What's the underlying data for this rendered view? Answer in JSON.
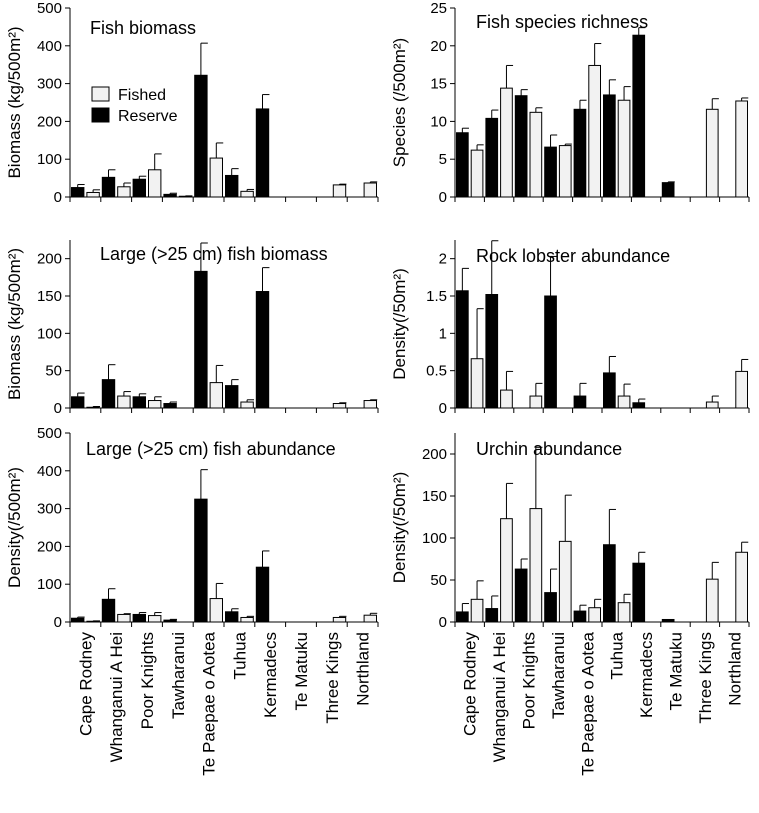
{
  "legend": {
    "fished": "Fished",
    "reserve": "Reserve",
    "fished_color": "#f2f2f2",
    "reserve_color": "#000000"
  },
  "sites": [
    "Cape Rodney",
    "Whanganui A Hei",
    "Poor Knights",
    "Tawharanui",
    "Te Paepae o Aotea",
    "Tuhua",
    "Kermadecs",
    "Te Matuku",
    "Three Kings",
    "Northland"
  ],
  "chart_data": [
    {
      "id": "fish-biomass",
      "type": "bar",
      "title": "Fish biomass",
      "ylabel": "Biomass (kg/500m²)",
      "ylim": [
        0,
        500
      ],
      "yticks": [
        0,
        100,
        200,
        300,
        400,
        500
      ],
      "categories": [
        "Cape Rodney",
        "Whanganui A Hei",
        "Poor Knights",
        "Tawharanui",
        "Te Paepae o Aotea",
        "Tuhua",
        "Kermadecs",
        "Te Matuku",
        "Three Kings",
        "Northland"
      ],
      "series": [
        {
          "name": "Reserve",
          "values": [
            25,
            52,
            47,
            7,
            322,
            57,
            233,
            null,
            null,
            null
          ],
          "errors": [
            8,
            20,
            8,
            3,
            85,
            18,
            38,
            null,
            null,
            null
          ]
        },
        {
          "name": "Fished",
          "values": [
            12,
            27,
            72,
            2,
            103,
            15,
            null,
            null,
            32,
            37
          ],
          "errors": [
            7,
            10,
            42,
            1,
            40,
            5,
            null,
            null,
            2,
            3
          ]
        }
      ]
    },
    {
      "id": "fish-species-richness",
      "type": "bar",
      "title": "Fish species richness",
      "ylabel": "Species (/500m²)",
      "ylim": [
        0,
        25
      ],
      "yticks": [
        0,
        5,
        10,
        15,
        20,
        25
      ],
      "categories": [
        "Cape Rodney",
        "Whanganui A Hei",
        "Poor Knights",
        "Tawharanui",
        "Te Paepae o Aotea",
        "Tuhua",
        "Kermadecs",
        "Te Matuku",
        "Three Kings",
        "Northland"
      ],
      "series": [
        {
          "name": "Reserve",
          "values": [
            8.5,
            10.4,
            13.4,
            6.6,
            11.6,
            13.5,
            21.4,
            1.9,
            null,
            null
          ],
          "errors": [
            0.6,
            1.1,
            0.8,
            1.6,
            1.2,
            2.0,
            1.0,
            0.1,
            null,
            null
          ]
        },
        {
          "name": "Fished",
          "values": [
            6.2,
            14.4,
            11.2,
            6.8,
            17.4,
            12.8,
            null,
            null,
            11.6,
            12.7
          ],
          "errors": [
            0.7,
            3.0,
            0.6,
            0.2,
            2.9,
            1.8,
            null,
            null,
            1.4,
            0.4
          ]
        }
      ]
    },
    {
      "id": "large-fish-biomass",
      "type": "bar",
      "title": "Large (>25 cm) fish biomass",
      "ylabel": "Biomass (kg/500m²)",
      "ylim": [
        0,
        225
      ],
      "yticks": [
        0,
        50,
        100,
        150,
        200
      ],
      "categories": [
        "Cape Rodney",
        "Whanganui A Hei",
        "Poor Knights",
        "Tawharanui",
        "Te Paepae o Aotea",
        "Tuhua",
        "Kermadecs",
        "Te Matuku",
        "Three Kings",
        "Northland"
      ],
      "series": [
        {
          "name": "Reserve",
          "values": [
            15,
            38,
            15,
            6,
            183,
            30,
            156,
            null,
            null,
            null
          ],
          "errors": [
            5,
            20,
            4,
            2,
            38,
            8,
            32,
            null,
            null,
            null
          ]
        },
        {
          "name": "Fished",
          "values": [
            1,
            16,
            10,
            0,
            34,
            8,
            null,
            null,
            6,
            10
          ],
          "errors": [
            1,
            6,
            5,
            0,
            23,
            3,
            null,
            null,
            1,
            1
          ]
        }
      ]
    },
    {
      "id": "rock-lobster-abundance",
      "type": "bar",
      "title": "Rock lobster abundance",
      "ylabel": "Density(/50m²)",
      "ylim": [
        0,
        2.25
      ],
      "yticks": [
        0,
        0.5,
        1,
        1.5,
        2
      ],
      "categories": [
        "Cape Rodney",
        "Whanganui A Hei",
        "Poor Knights",
        "Tawharanui",
        "Te Paepae o Aotea",
        "Tuhua",
        "Kermadecs",
        "Te Matuku",
        "Three Kings",
        "Northland"
      ],
      "series": [
        {
          "name": "Reserve",
          "values": [
            1.57,
            1.52,
            0,
            1.5,
            0.16,
            0.47,
            0.07,
            null,
            null,
            null
          ],
          "errors": [
            0.3,
            0.72,
            0,
            0.53,
            0.17,
            0.22,
            0.05,
            null,
            null,
            null
          ]
        },
        {
          "name": "Fished",
          "values": [
            0.66,
            0.24,
            0.16,
            0,
            0,
            0.16,
            null,
            null,
            0.08,
            0.49
          ],
          "errors": [
            0.67,
            0.25,
            0.17,
            0,
            0,
            0.16,
            null,
            null,
            0.08,
            0.16
          ]
        }
      ]
    },
    {
      "id": "large-fish-abundance",
      "type": "bar",
      "title": "Large (>25 cm) fish abundance",
      "ylabel": "Density(/500m²)",
      "ylim": [
        0,
        500
      ],
      "yticks": [
        0,
        100,
        200,
        300,
        400,
        500
      ],
      "categories": [
        "Cape Rodney",
        "Whanganui A Hei",
        "Poor Knights",
        "Tawharanui",
        "Te Paepae o Aotea",
        "Tuhua",
        "Kermadecs",
        "Te Matuku",
        "Three Kings",
        "Northland"
      ],
      "series": [
        {
          "name": "Reserve",
          "values": [
            10,
            60,
            20,
            5,
            325,
            27,
            145,
            null,
            null,
            null
          ],
          "errors": [
            3,
            28,
            5,
            2,
            78,
            8,
            43,
            null,
            null,
            null
          ]
        },
        {
          "name": "Fished",
          "values": [
            2,
            20,
            17,
            0,
            62,
            12,
            null,
            null,
            12,
            18
          ],
          "errors": [
            1,
            2,
            8,
            0,
            40,
            3,
            null,
            null,
            3,
            5
          ]
        }
      ]
    },
    {
      "id": "urchin-abundance",
      "type": "bar",
      "title": "Urchin abundance",
      "ylabel": "Density(/50m²)",
      "ylim": [
        0,
        225
      ],
      "yticks": [
        0,
        50,
        100,
        150,
        200
      ],
      "categories": [
        "Cape Rodney",
        "Whanganui A Hei",
        "Poor Knights",
        "Tawharanui",
        "Te Paepae o Aotea",
        "Tuhua",
        "Kermadecs",
        "Te Matuku",
        "Three Kings",
        "Northland"
      ],
      "series": [
        {
          "name": "Reserve",
          "values": [
            12,
            16,
            63,
            35,
            13,
            92,
            70,
            3,
            null,
            null
          ],
          "errors": [
            10,
            15,
            12,
            28,
            7,
            42,
            13,
            0,
            null,
            null
          ]
        },
        {
          "name": "Fished",
          "values": [
            27,
            123,
            135,
            96,
            17,
            23,
            null,
            null,
            51,
            83
          ],
          "errors": [
            22,
            42,
            73,
            55,
            10,
            10,
            null,
            null,
            20,
            12
          ]
        }
      ]
    }
  ]
}
